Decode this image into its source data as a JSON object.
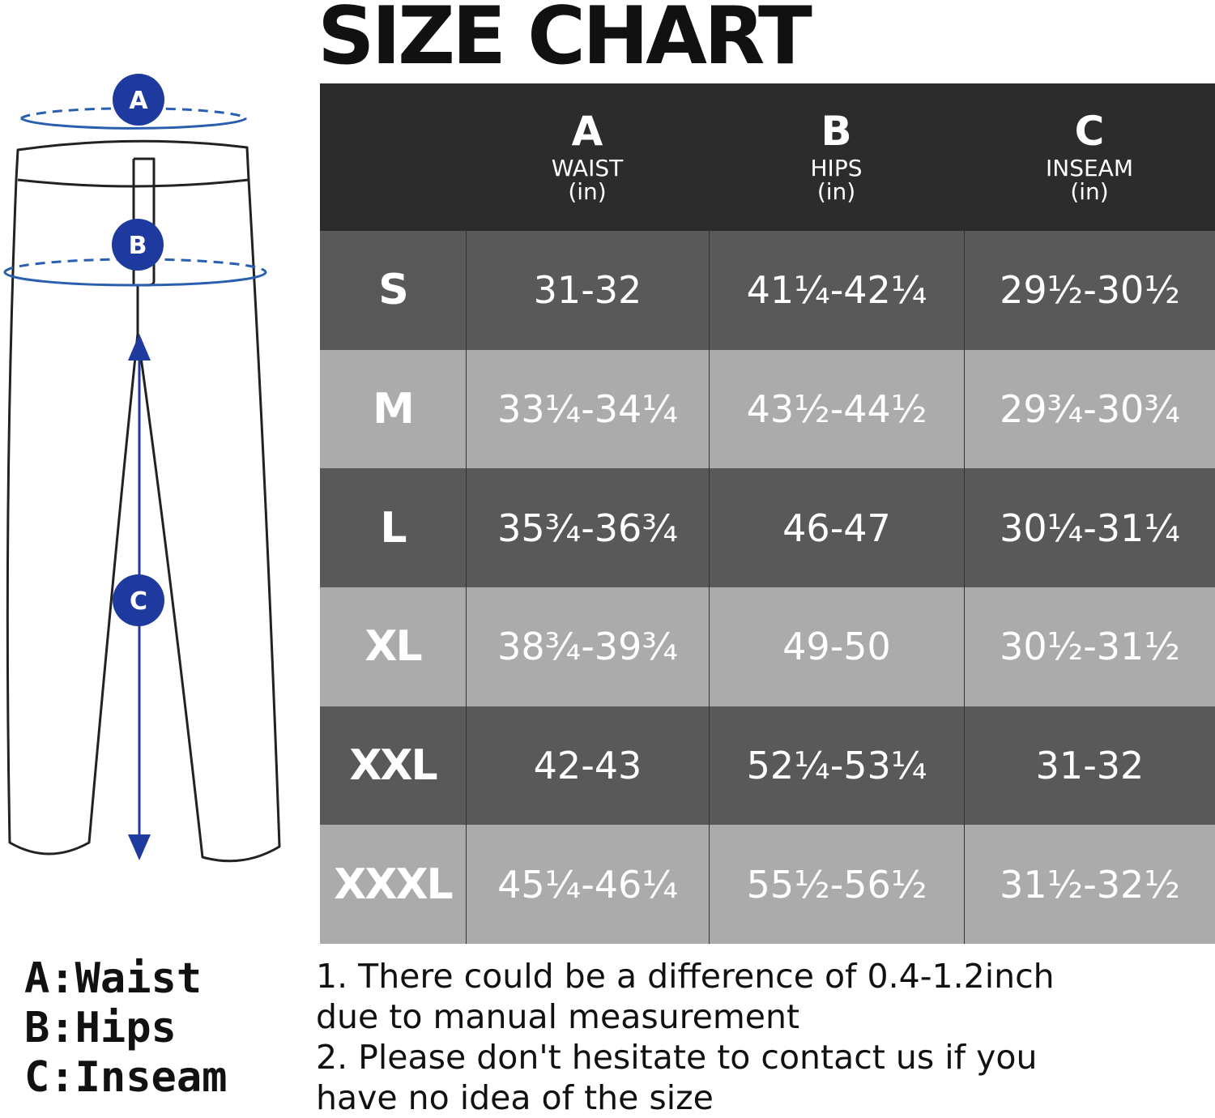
{
  "title": "SIZE CHART",
  "diagram": {
    "markers": [
      "A",
      "B",
      "C"
    ],
    "accent_color": "#1f3a9e"
  },
  "table": {
    "header": [
      {
        "letter": "A",
        "name": "WAIST",
        "unit": "(in)"
      },
      {
        "letter": "B",
        "name": "HIPS",
        "unit": "(in)"
      },
      {
        "letter": "C",
        "name": "INSEAM",
        "unit": "(in)"
      }
    ],
    "rows": [
      {
        "size": "S",
        "waist": "31-32",
        "hips": "41¼-42¼",
        "inseam": "29½-30½"
      },
      {
        "size": "M",
        "waist": "33¼-34¼",
        "hips": "43½-44½",
        "inseam": "29¾-30¾"
      },
      {
        "size": "L",
        "waist": "35¾-36¾",
        "hips": "46-47",
        "inseam": "30¼-31¼"
      },
      {
        "size": "XL",
        "waist": "38¾-39¾",
        "hips": "49-50",
        "inseam": "30½-31½"
      },
      {
        "size": "XXL",
        "waist": "42-43",
        "hips": "52¼-53¼",
        "inseam": "31-32"
      },
      {
        "size": "XXXL",
        "waist": "45¼-46¼",
        "hips": "55½-56½",
        "inseam": "31½-32½"
      }
    ],
    "colors": {
      "header": "#2c2c2c",
      "dark_row": "#595959",
      "light_row": "#ababab"
    }
  },
  "legend": [
    "A:Waist",
    "B:Hips",
    "C:Inseam"
  ],
  "notes": [
    "1. There could be a difference of 0.4-1.2inch",
    "due to manual measurement",
    "2. Please don't hesitate to contact us if you",
    "have no idea of the size"
  ]
}
